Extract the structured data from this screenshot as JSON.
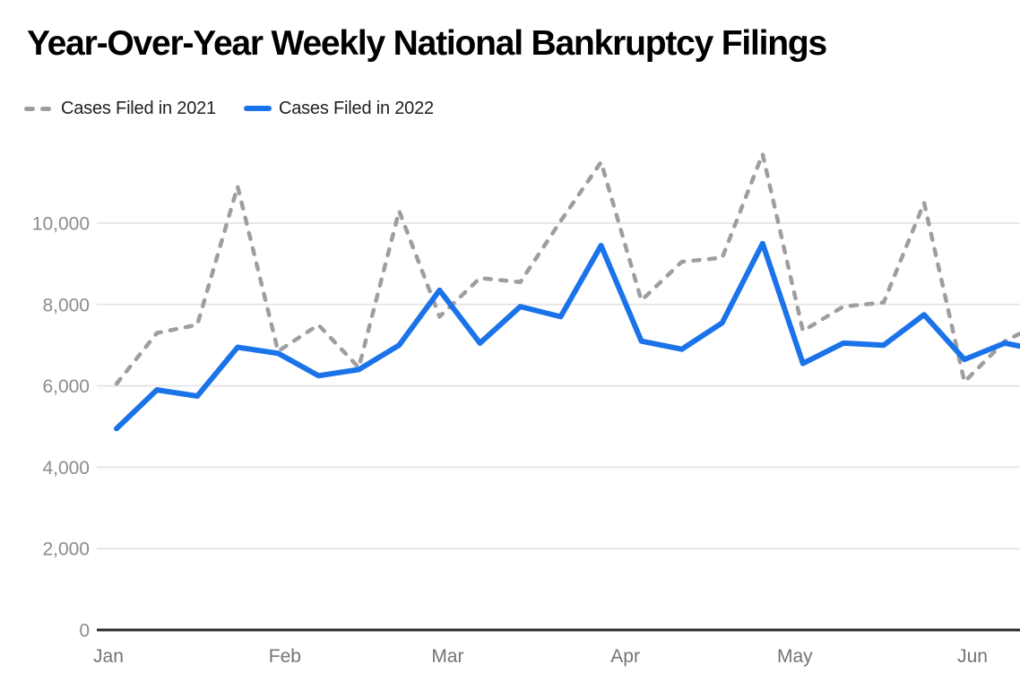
{
  "title": "Year-Over-Year Weekly National Bankruptcy Filings",
  "legend": {
    "items": [
      {
        "label": "Cases Filed in 2021",
        "style": "dashed",
        "color": "#9e9e9e"
      },
      {
        "label": "Cases Filed in 2022",
        "style": "solid",
        "color": "#1a73e8"
      }
    ]
  },
  "colors": {
    "series_2021": "#9e9e9e",
    "series_2022": "#1a73e8",
    "gridline": "#e7e7e7",
    "axis_line": "#2b2b2b",
    "y_tick_label": "#8c8c8c",
    "x_tick_label": "#757575"
  },
  "chart_data": {
    "type": "line",
    "title": "Year-Over-Year Weekly National Bankruptcy Filings",
    "x_unit": "week",
    "grid": true,
    "legend_position": "top-left",
    "y_axis": {
      "tick_values": [
        0,
        2000,
        4000,
        6000,
        8000,
        10000
      ],
      "tick_labels": [
        "0",
        "2,000",
        "4,000",
        "6,000",
        "8,000",
        "10,000"
      ],
      "range": [
        0,
        12000
      ]
    },
    "x_axis": {
      "tick_labels": [
        "Jan",
        "Feb",
        "Mar",
        "Apr",
        "May",
        "Jun"
      ],
      "month_positions_weeks": [
        -0.2,
        4.17,
        8.2,
        12.6,
        16.8,
        21.2
      ]
    },
    "series": [
      {
        "name": "Cases Filed in 2021",
        "style": "dashed",
        "color": "#9e9e9e",
        "values": [
          6050,
          7300,
          7500,
          10900,
          6850,
          7500,
          6450,
          10300,
          7700,
          8650,
          8550,
          10050,
          11500,
          8100,
          9050,
          9150,
          11700,
          7350,
          7950,
          8050,
          10500,
          6100,
          7100,
          7600
        ]
      },
      {
        "name": "Cases Filed in 2022",
        "style": "solid",
        "color": "#1a73e8",
        "values": [
          4950,
          5900,
          5750,
          6950,
          6800,
          6250,
          6400,
          7000,
          8350,
          7050,
          7950,
          7700,
          9450,
          7100,
          6900,
          7550,
          9500,
          6550,
          7050,
          7000,
          7750,
          6650,
          7050,
          6850
        ]
      }
    ]
  }
}
